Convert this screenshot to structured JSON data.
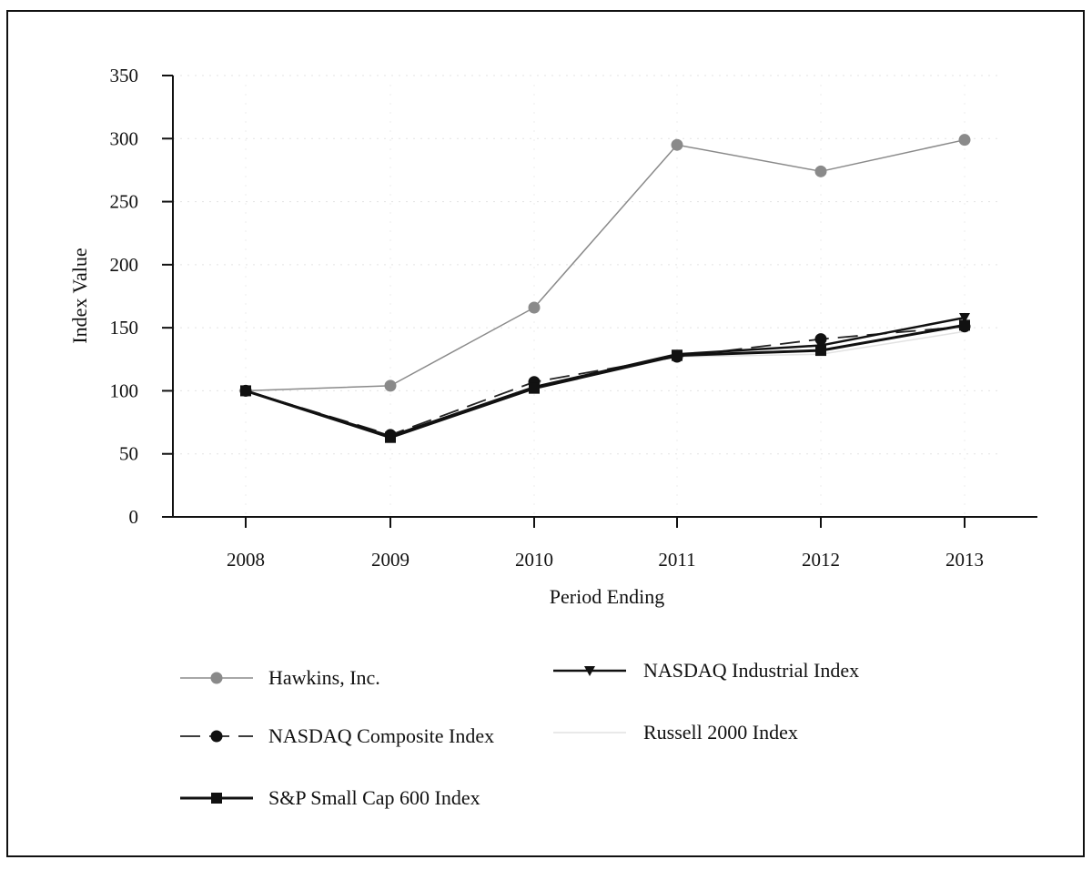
{
  "chart_data": {
    "type": "line",
    "title": "",
    "xlabel": "Period Ending",
    "ylabel": "Index Value",
    "categories": [
      "2008",
      "2009",
      "2010",
      "2011",
      "2012",
      "2013"
    ],
    "ylim": [
      0,
      350
    ],
    "yticks": [
      0,
      50,
      100,
      150,
      200,
      250,
      300,
      350
    ],
    "grid": false,
    "legend_position": "bottom",
    "series": [
      {
        "name": "Hawkins, Inc.",
        "values": [
          100,
          104,
          166,
          295,
          274,
          299
        ],
        "color": "#8a8a8a",
        "dash": "",
        "marker": "circle",
        "marker_color": "#8a8a8a",
        "width": 1.5
      },
      {
        "name": "NASDAQ Industrial Index",
        "values": [
          100,
          64,
          103,
          129,
          136,
          158
        ],
        "color": "#111111",
        "dash": "",
        "marker": "triangle-down",
        "marker_color": "#111111",
        "width": 2.5
      },
      {
        "name": "NASDAQ Composite Index",
        "values": [
          100,
          65,
          107,
          127,
          141,
          151
        ],
        "color": "#222222",
        "dash": "22,10",
        "marker": "circle",
        "marker_color": "#111111",
        "width": 1.8
      },
      {
        "name": "Russell 2000 Index",
        "values": [
          100,
          64,
          102,
          127,
          129,
          147
        ],
        "color": "#e2e2e2",
        "dash": "",
        "marker": "none",
        "marker_color": "#e2e2e2",
        "width": 1.5
      },
      {
        "name": "S&P Small Cap 600 Index",
        "values": [
          100,
          63,
          102,
          128,
          132,
          152
        ],
        "color": "#111111",
        "dash": "",
        "marker": "square",
        "marker_color": "#111111",
        "width": 3
      }
    ]
  }
}
